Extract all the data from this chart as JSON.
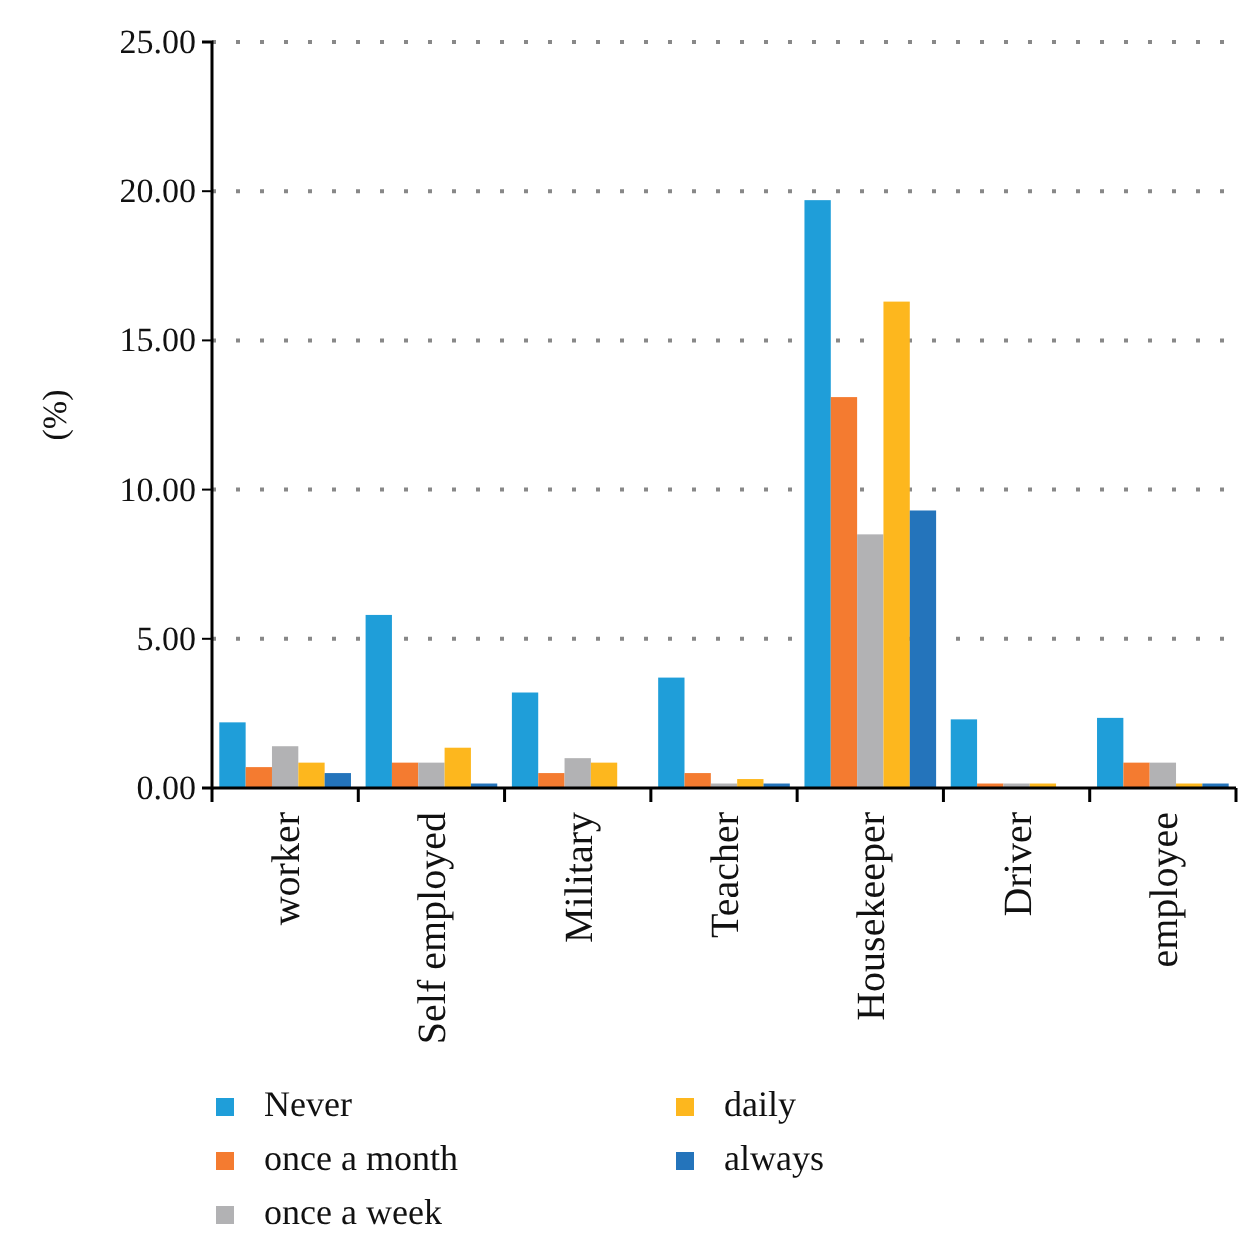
{
  "chart_data": {
    "type": "bar",
    "ylabel": "(%)",
    "categories": [
      "worker",
      "Self employed",
      "Military",
      "Teacher",
      "Housekeeper",
      "Driver",
      "employee"
    ],
    "series": [
      {
        "name": "Never",
        "color": "#1f9ed9",
        "values": [
          2.2,
          5.8,
          3.2,
          3.7,
          19.7,
          2.3,
          2.35
        ]
      },
      {
        "name": "once a month",
        "color": "#f47b30",
        "values": [
          0.7,
          0.85,
          0.5,
          0.5,
          13.1,
          0.15,
          0.85
        ]
      },
      {
        "name": "once a week",
        "color": "#b2b2b4",
        "values": [
          1.4,
          0.85,
          1.0,
          0.15,
          8.5,
          0.15,
          0.85
        ]
      },
      {
        "name": "daily",
        "color": "#fdb71e",
        "values": [
          0.85,
          1.35,
          0.85,
          0.3,
          16.3,
          0.15,
          0.15
        ]
      },
      {
        "name": "always",
        "color": "#2474bb",
        "values": [
          0.5,
          0.15,
          0,
          0.15,
          9.3,
          0,
          0.15
        ]
      }
    ],
    "ylim": [
      0,
      25
    ],
    "yticks": [
      {
        "value": 0,
        "label": "0.00"
      },
      {
        "value": 5,
        "label": "5.00"
      },
      {
        "value": 10,
        "label": "10.00"
      },
      {
        "value": 15,
        "label": "15.00"
      },
      {
        "value": 20,
        "label": "20.00"
      },
      {
        "value": 25,
        "label": "25.00"
      }
    ],
    "grid": "y",
    "legend": "bottom"
  }
}
